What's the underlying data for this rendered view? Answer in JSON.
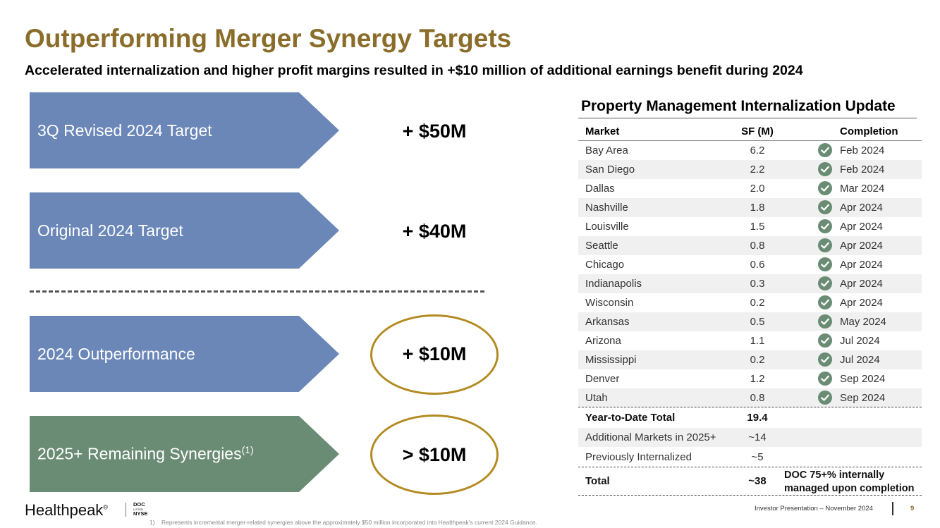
{
  "title": "Outperforming Merger Synergy Targets",
  "subtitle": "Accelerated internalization and higher profit margins resulted in +$10 million of additional earnings benefit during 2024",
  "colors": {
    "title": "#8a6d2a",
    "arrow_blue": "#6a87b8",
    "arrow_green": "#6a8c74",
    "oval": "#b38b22",
    "check": "#6a8c74"
  },
  "arrows": [
    {
      "label": "3Q Revised 2024 Target",
      "value": "+ $50M"
    },
    {
      "label": "Original 2024 Target",
      "value": "+ $40M"
    },
    {
      "label": "2024 Outperformance",
      "value": "+ $10M"
    },
    {
      "label": "2025+ Remaining Synergies",
      "footnote_ref": "(1)",
      "value": "> $10M"
    }
  ],
  "table": {
    "title": "Property Management Internalization Update",
    "headers": {
      "market": "Market",
      "sf": "SF (M)",
      "completion": "Completion"
    },
    "rows": [
      {
        "market": "Bay Area",
        "sf": "6.2",
        "completion": "Feb 2024"
      },
      {
        "market": "San Diego",
        "sf": "2.2",
        "completion": "Feb 2024"
      },
      {
        "market": "Dallas",
        "sf": "2.0",
        "completion": "Mar 2024"
      },
      {
        "market": "Nashville",
        "sf": "1.8",
        "completion": "Apr 2024"
      },
      {
        "market": "Louisville",
        "sf": "1.5",
        "completion": "Apr 2024"
      },
      {
        "market": "Seattle",
        "sf": "0.8",
        "completion": "Apr 2024"
      },
      {
        "market": "Chicago",
        "sf": "0.6",
        "completion": "Apr 2024"
      },
      {
        "market": "Indianapolis",
        "sf": "0.3",
        "completion": "Apr 2024"
      },
      {
        "market": "Wisconsin",
        "sf": "0.2",
        "completion": "Apr 2024"
      },
      {
        "market": "Arkansas",
        "sf": "0.5",
        "completion": "May 2024"
      },
      {
        "market": "Arizona",
        "sf": "1.1",
        "completion": "Jul 2024"
      },
      {
        "market": "Mississippi",
        "sf": "0.2",
        "completion": "Jul 2024"
      },
      {
        "market": "Denver",
        "sf": "1.2",
        "completion": "Sep 2024"
      },
      {
        "market": "Utah",
        "sf": "0.8",
        "completion": "Sep 2024"
      }
    ],
    "ytd": {
      "label": "Year-to-Date Total",
      "sf": "19.4"
    },
    "additional": {
      "label": "Additional Markets in 2025+",
      "sf": "~14"
    },
    "previous": {
      "label": "Previously Internalized",
      "sf": "~5"
    },
    "total": {
      "label": "Total",
      "sf": "~38"
    },
    "note_line1": "DOC 75+% internally",
    "note_line2": "managed upon completion",
    "check_icon": "check-circle-icon"
  },
  "footer": {
    "logo": "Healthpeak",
    "logo_mark": "®",
    "ticker_line1": "DOC",
    "ticker_line2": "LISTED",
    "ticker_line3": "NYSE",
    "footnote": "1)    Represents incremental merger-related synergies above the approximately $50 million incorporated into Healthpeak’s current 2024 Guidance.",
    "presentation": "Investor Presentation – November 2024",
    "page": "9"
  }
}
